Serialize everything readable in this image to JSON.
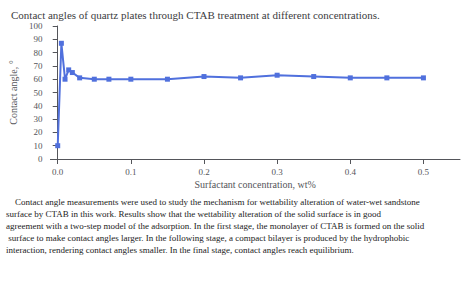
{
  "chart_data": {
    "type": "line",
    "title": "Contact angles of quartz plates through CTAB treatment at different concentrations.",
    "xlabel": "Surfactant concentration, wt%",
    "ylabel": "Contact angle, °",
    "x": [
      0.0,
      0.005,
      0.01,
      0.015,
      0.02,
      0.03,
      0.05,
      0.07,
      0.1,
      0.15,
      0.2,
      0.25,
      0.3,
      0.35,
      0.4,
      0.45,
      0.5
    ],
    "values": [
      10,
      87,
      60,
      67,
      65,
      61,
      60,
      60,
      60,
      60,
      62,
      61,
      63,
      62,
      61,
      61,
      61
    ],
    "xlim": [
      -0.01,
      0.55
    ],
    "ylim": [
      0,
      100
    ],
    "xticks": [
      {
        "value": 0,
        "label": "0.0"
      },
      0.1,
      0.2,
      0.3,
      0.4,
      0.5
    ],
    "yticks": [
      0,
      10,
      20,
      30,
      40,
      50,
      60,
      70,
      80,
      90,
      100
    ],
    "marker": "square",
    "grid": false,
    "caption": "    Contact angle measurements were used to study the mechanism for wettability alteration of water-wet sandstone surface by CTAB in this work. Results show that the wettability alteration of the solid surface is in good agreement with a two-step model of the adsorption. In the first stage, the monolayer of CTAB is formed on the solid surface to make contact angles larger. In the following stage, a compact bilayer is produced by the hydrophobic interaction, rendering contact angles smaller. In the final stage, contact angles reach equilibrium."
  }
}
